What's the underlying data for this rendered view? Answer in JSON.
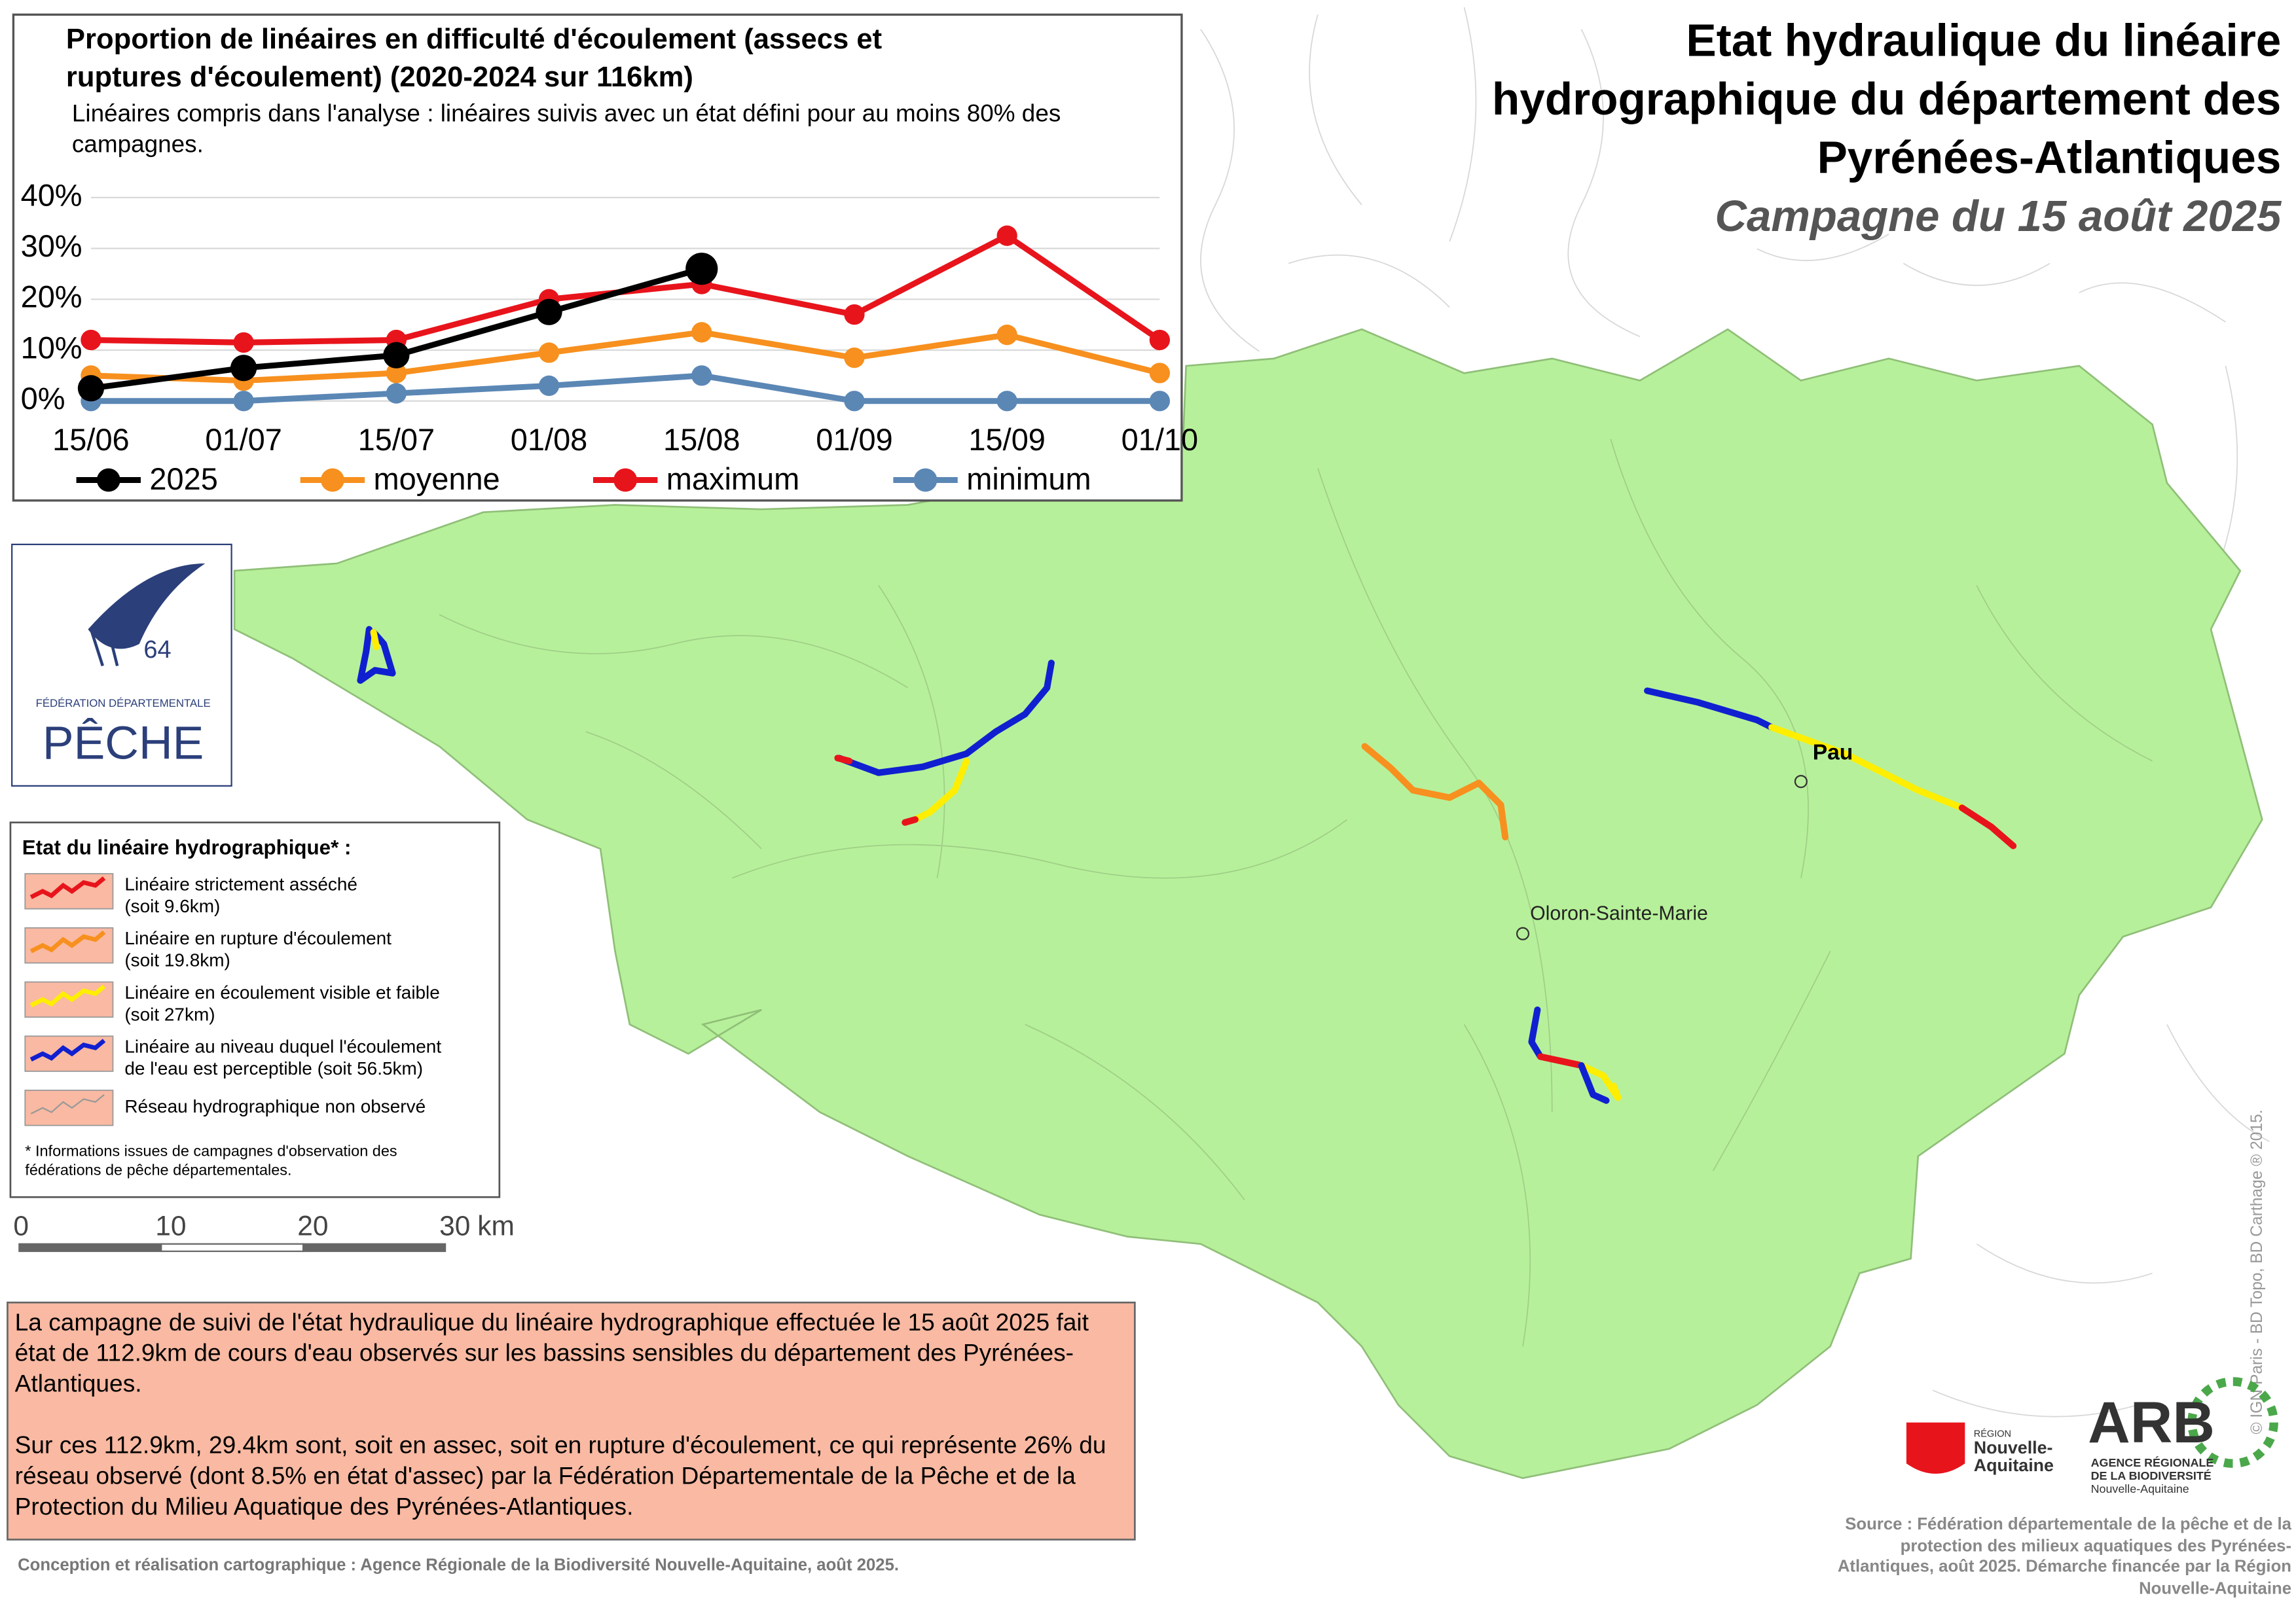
{
  "chart_data": {
    "type": "line",
    "title": "Proportion de linéaires en difficulté d'écoulement (assecs et ruptures d'écoulement) (2020-2024 sur 116km)",
    "subtitle": "Linéaires compris dans l'analyse : linéaires suivis avec un état défini pour au moins 80% des campagnes.",
    "categories": [
      "15/06",
      "01/07",
      "15/07",
      "01/08",
      "15/08",
      "01/09",
      "15/09",
      "01/10"
    ],
    "series": [
      {
        "name": "2025",
        "color": "#000000",
        "values": [
          2.5,
          6.5,
          9,
          17.5,
          26,
          null,
          null,
          null
        ]
      },
      {
        "name": "moyenne",
        "color": "#f7901e",
        "values": [
          5,
          4,
          5.5,
          9.5,
          13.5,
          8.5,
          13,
          5.5
        ]
      },
      {
        "name": "maximum",
        "color": "#e8141c",
        "values": [
          12,
          11.5,
          12,
          20,
          23,
          17,
          32.5,
          12
        ]
      },
      {
        "name": "minimum",
        "color": "#5b87b5",
        "values": [
          0,
          0,
          1.5,
          3,
          5,
          0,
          0,
          0
        ]
      }
    ],
    "ylim": [
      0,
      40
    ],
    "yticks": [
      {
        "value": 0,
        "label": "0%"
      },
      {
        "value": 10,
        "label": "10%"
      },
      {
        "value": 20,
        "label": "20%"
      },
      {
        "value": 30,
        "label": "30%"
      },
      {
        "value": 40,
        "label": "40%"
      }
    ],
    "grid": true
  },
  "map": {
    "title_lines": [
      "Etat hydraulique du linéaire",
      "hydrographique du département des",
      "Pyrénées-Atlantiques"
    ],
    "subtitle": "Campagne du 15 août 2025",
    "cities": [
      "Pau",
      "Oloron-Sainte-Marie"
    ],
    "copyright": "© IGN Paris - BD Topo, BD Carthage ® 2015."
  },
  "legend": {
    "title": "Etat du linéaire hydrographique* :",
    "items": [
      {
        "label": "Linéaire strictement asséché",
        "detail": "(soit 9.6km)",
        "color": "#e8141c"
      },
      {
        "label": "Linéaire en rupture d'écoulement",
        "detail": "(soit 19.8km)",
        "color": "#f7901e"
      },
      {
        "label": "Linéaire en écoulement visible et faible",
        "detail": "(soit 27km)",
        "color": "#ffee00"
      },
      {
        "label": "Linéaire au niveau duquel l'écoulement",
        "detail": "de l'eau est perceptible (soit 56.5km)",
        "color": "#1020d0"
      },
      {
        "label": "Réseau hydrographique non observé",
        "color": "#999999"
      }
    ],
    "note": "* Informations issues de campagnes d'observation des fédérations de pêche départementales."
  },
  "scale_bar": {
    "ticks": [
      0,
      10,
      20,
      30
    ],
    "unit": "km"
  },
  "summary": {
    "paragraphs": [
      "La campagne de suivi de l'état hydraulique du linéaire hydrographique effectuée le 15 août 2025 fait état de 112.9km de cours d'eau observés sur les bassins sensibles du département des Pyrénées-Atlantiques.",
      "Sur ces 112.9km, 29.4km sont, soit en assec, soit en rupture d'écoulement, ce qui représente 26% du réseau observé (dont 8.5% en état d'assec) par la Fédération Départementale de la Pêche et de la Protection du Milieu Aquatique des Pyrénées-Atlantiques."
    ]
  },
  "credits": "Conception et réalisation cartographique : Agence Régionale de la Biodiversité Nouvelle-Aquitaine, août 2025.",
  "source": "Source : Fédération départementale de la pêche et de la protection des milieux aquatiques des Pyrénées-Atlantiques, août 2025. Démarche financée par la Région Nouvelle-Aquitaine",
  "logos": {
    "peche": [
      "64",
      "FÉDÉRATION DÉPARTEMENTALE",
      "PÊCHE"
    ],
    "region": [
      "RÉGION",
      "Nouvelle-",
      "Aquitaine"
    ],
    "arb": [
      "ARB",
      "AGENCE RÉGIONALE",
      "DE LA BIODIVERSITÉ",
      "Nouvelle-Aquitaine"
    ]
  }
}
